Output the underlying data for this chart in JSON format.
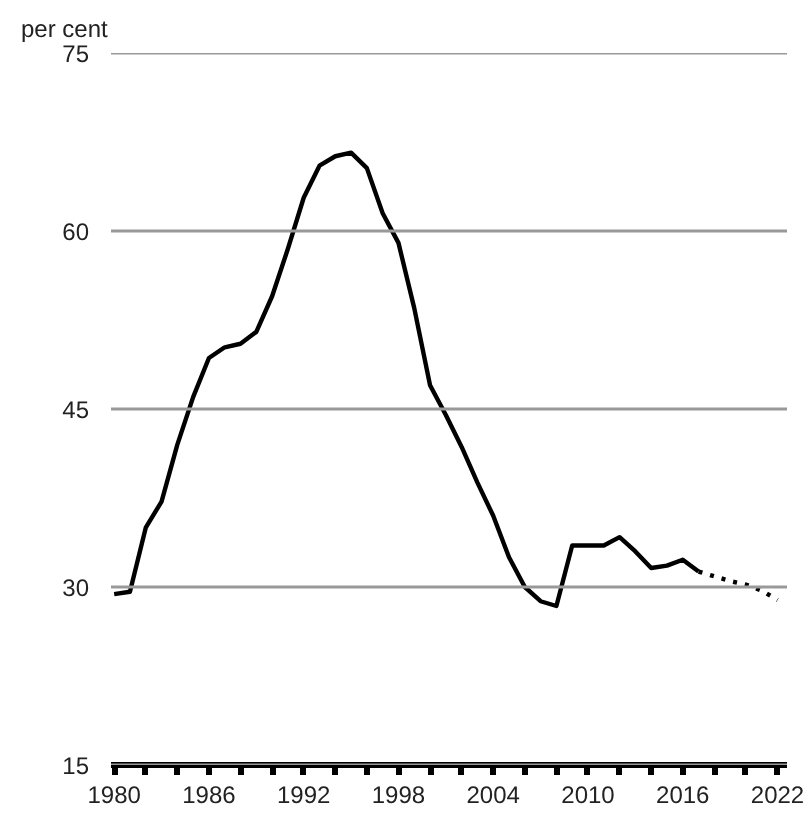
{
  "chart_data": {
    "type": "line",
    "ylabel": "per cent",
    "xlim": [
      1979.8,
      2022.6
    ],
    "ylim": [
      15,
      75
    ],
    "xticks": [
      1980,
      {
        "value": 1982,
        "label": null
      },
      {
        "value": 1984,
        "label": null
      },
      1986,
      {
        "value": 1988,
        "label": null
      },
      {
        "value": 1990,
        "label": null
      },
      1992,
      {
        "value": 1994,
        "label": null
      },
      {
        "value": 1996,
        "label": null
      },
      1998,
      {
        "value": 2000,
        "label": null
      },
      {
        "value": 2002,
        "label": null
      },
      2004,
      {
        "value": 2006,
        "label": null
      },
      {
        "value": 2008,
        "label": null
      },
      2010,
      {
        "value": 2012,
        "label": null
      },
      {
        "value": 2014,
        "label": null
      },
      2016,
      {
        "value": 2018,
        "label": null
      },
      {
        "value": 2020,
        "label": null
      },
      2022
    ],
    "yticks": [
      15,
      30,
      45,
      60,
      75
    ],
    "grid": "y",
    "marker": "none",
    "series": [
      {
        "color": "#000000",
        "line_style": "solid",
        "x": [
          1980,
          1981,
          1982,
          1983,
          1984,
          1985,
          1986,
          1987,
          1988,
          1989,
          1990,
          1991,
          1992,
          1993,
          1994,
          1995,
          1996,
          1997,
          1998,
          1999,
          2000,
          2001,
          2002,
          2003,
          2004,
          2005,
          2006,
          2007,
          2008,
          2009,
          2010,
          2011,
          2012,
          2013,
          2014,
          2015,
          2016,
          2017
        ],
        "values": [
          29.4,
          29.6,
          35,
          37.2,
          42,
          46,
          49.3,
          50.2,
          50.5,
          51.5,
          54.5,
          58.5,
          62.8,
          65.5,
          66.3,
          66.6,
          65.3,
          61.5,
          59,
          53.5,
          47,
          44.5,
          41.8,
          38.8,
          36,
          32.5,
          30,
          28.8,
          28.4,
          33.5,
          33.5,
          33.5,
          34.2,
          33,
          31.6,
          31.8,
          32.3,
          31.3
        ]
      },
      {
        "color": "#000000",
        "line_style": "dotted",
        "x": [
          2017,
          2018,
          2019,
          2020,
          2021,
          2022
        ],
        "values": [
          31.3,
          30.9,
          30.5,
          30.2,
          29.7,
          28.9
        ]
      }
    ]
  }
}
